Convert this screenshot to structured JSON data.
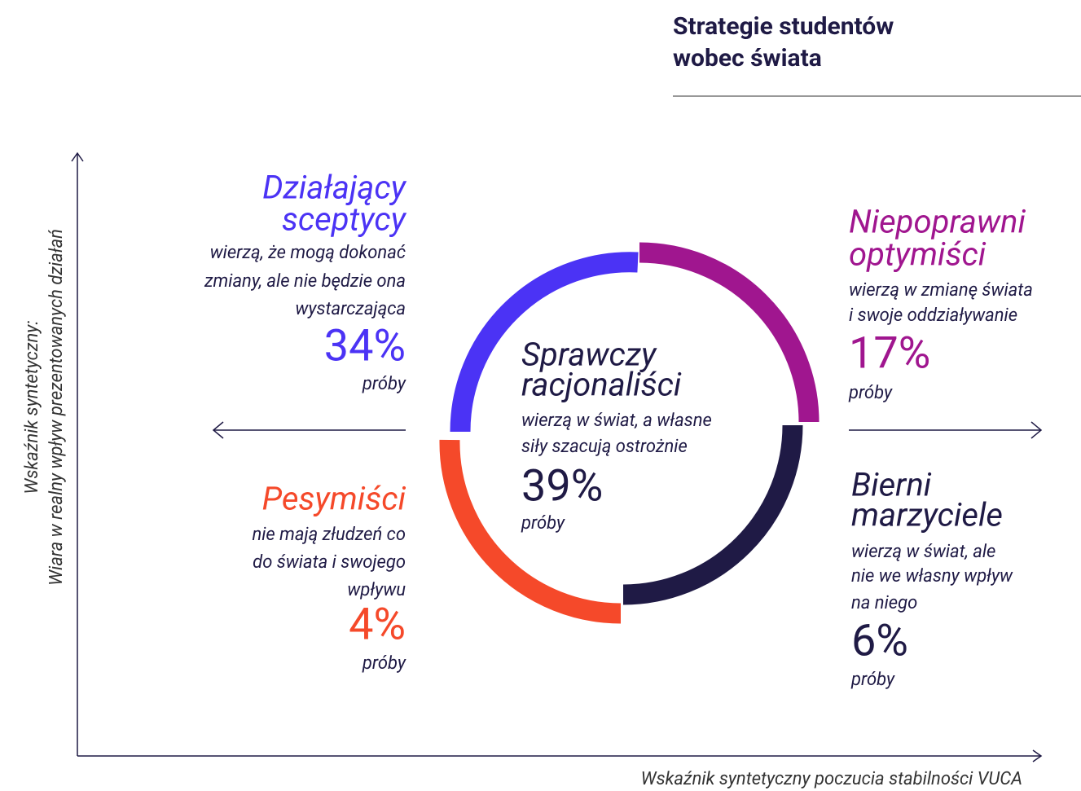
{
  "title": [
    "Strategie studentów",
    "wobec świata"
  ],
  "y_axis_label": [
    "Wskaźnik syntetyczny:",
    "Wiara w realny wpływ prezentowanych działań"
  ],
  "x_axis_label": "Wskaźnik syntetyczny poczucia stabilności VUCA",
  "groups": [
    {
      "name": [
        "Działający",
        "sceptycy"
      ],
      "description": [
        "wierzą, że mogą dokonać",
        "zmiany, ale nie będzie ona",
        "wystarczająca"
      ],
      "share": "34%",
      "unit": "próby"
    },
    {
      "name": [
        "Niepoprawni",
        "optymiści"
      ],
      "description": [
        "wierzą w zmianę świata",
        "i swoje oddziaływanie"
      ],
      "share": "17%",
      "unit": "próby"
    },
    {
      "name": [
        "Pesymiści"
      ],
      "description": [
        "nie mają złudzeń co",
        "do świata i swojego",
        "wpływu"
      ],
      "share": "4%",
      "unit": "próby"
    },
    {
      "name": [
        "Bierni",
        "marzyciele"
      ],
      "description": [
        "wierzą w świat, ale",
        "nie we własny wpływ",
        "na niego"
      ],
      "share": "6%",
      "unit": "próby"
    },
    {
      "name": [
        "Sprawczy",
        "racjonaliści"
      ],
      "description": [
        "wierzą w świat, a własne",
        "siły szacują ostrożnie"
      ],
      "share": "39%",
      "unit": "próby"
    }
  ]
}
